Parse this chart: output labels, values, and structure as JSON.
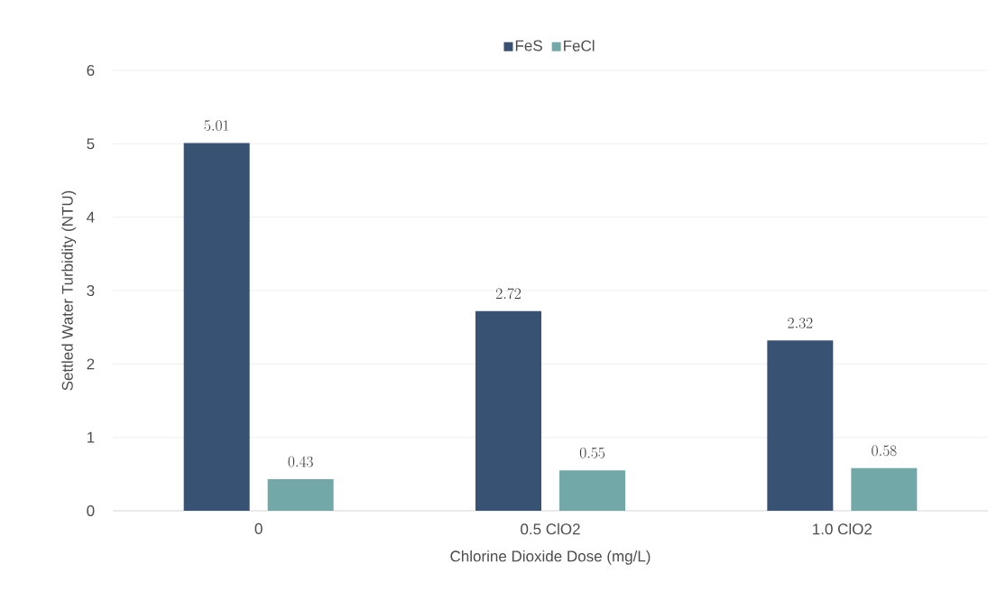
{
  "chart_data": {
    "type": "bar",
    "xlabel": "Chlorine Dioxide Dose (mg/L)",
    "ylabel": "Settled Water Turbidity (NTU)",
    "categories": [
      "0",
      "0.5 ClO2",
      "1.0 ClO2"
    ],
    "series": [
      {
        "name": "FeS",
        "color": "#375273",
        "values": [
          5.01,
          2.72,
          2.32
        ]
      },
      {
        "name": "FeCl",
        "color": "#72a8a8",
        "values": [
          0.43,
          0.55,
          0.58
        ]
      }
    ],
    "ylim": [
      0,
      6
    ],
    "yticks": [
      0,
      1,
      2,
      3,
      4,
      5,
      6
    ],
    "grid": "y",
    "legend": "top",
    "data_labels": true
  }
}
